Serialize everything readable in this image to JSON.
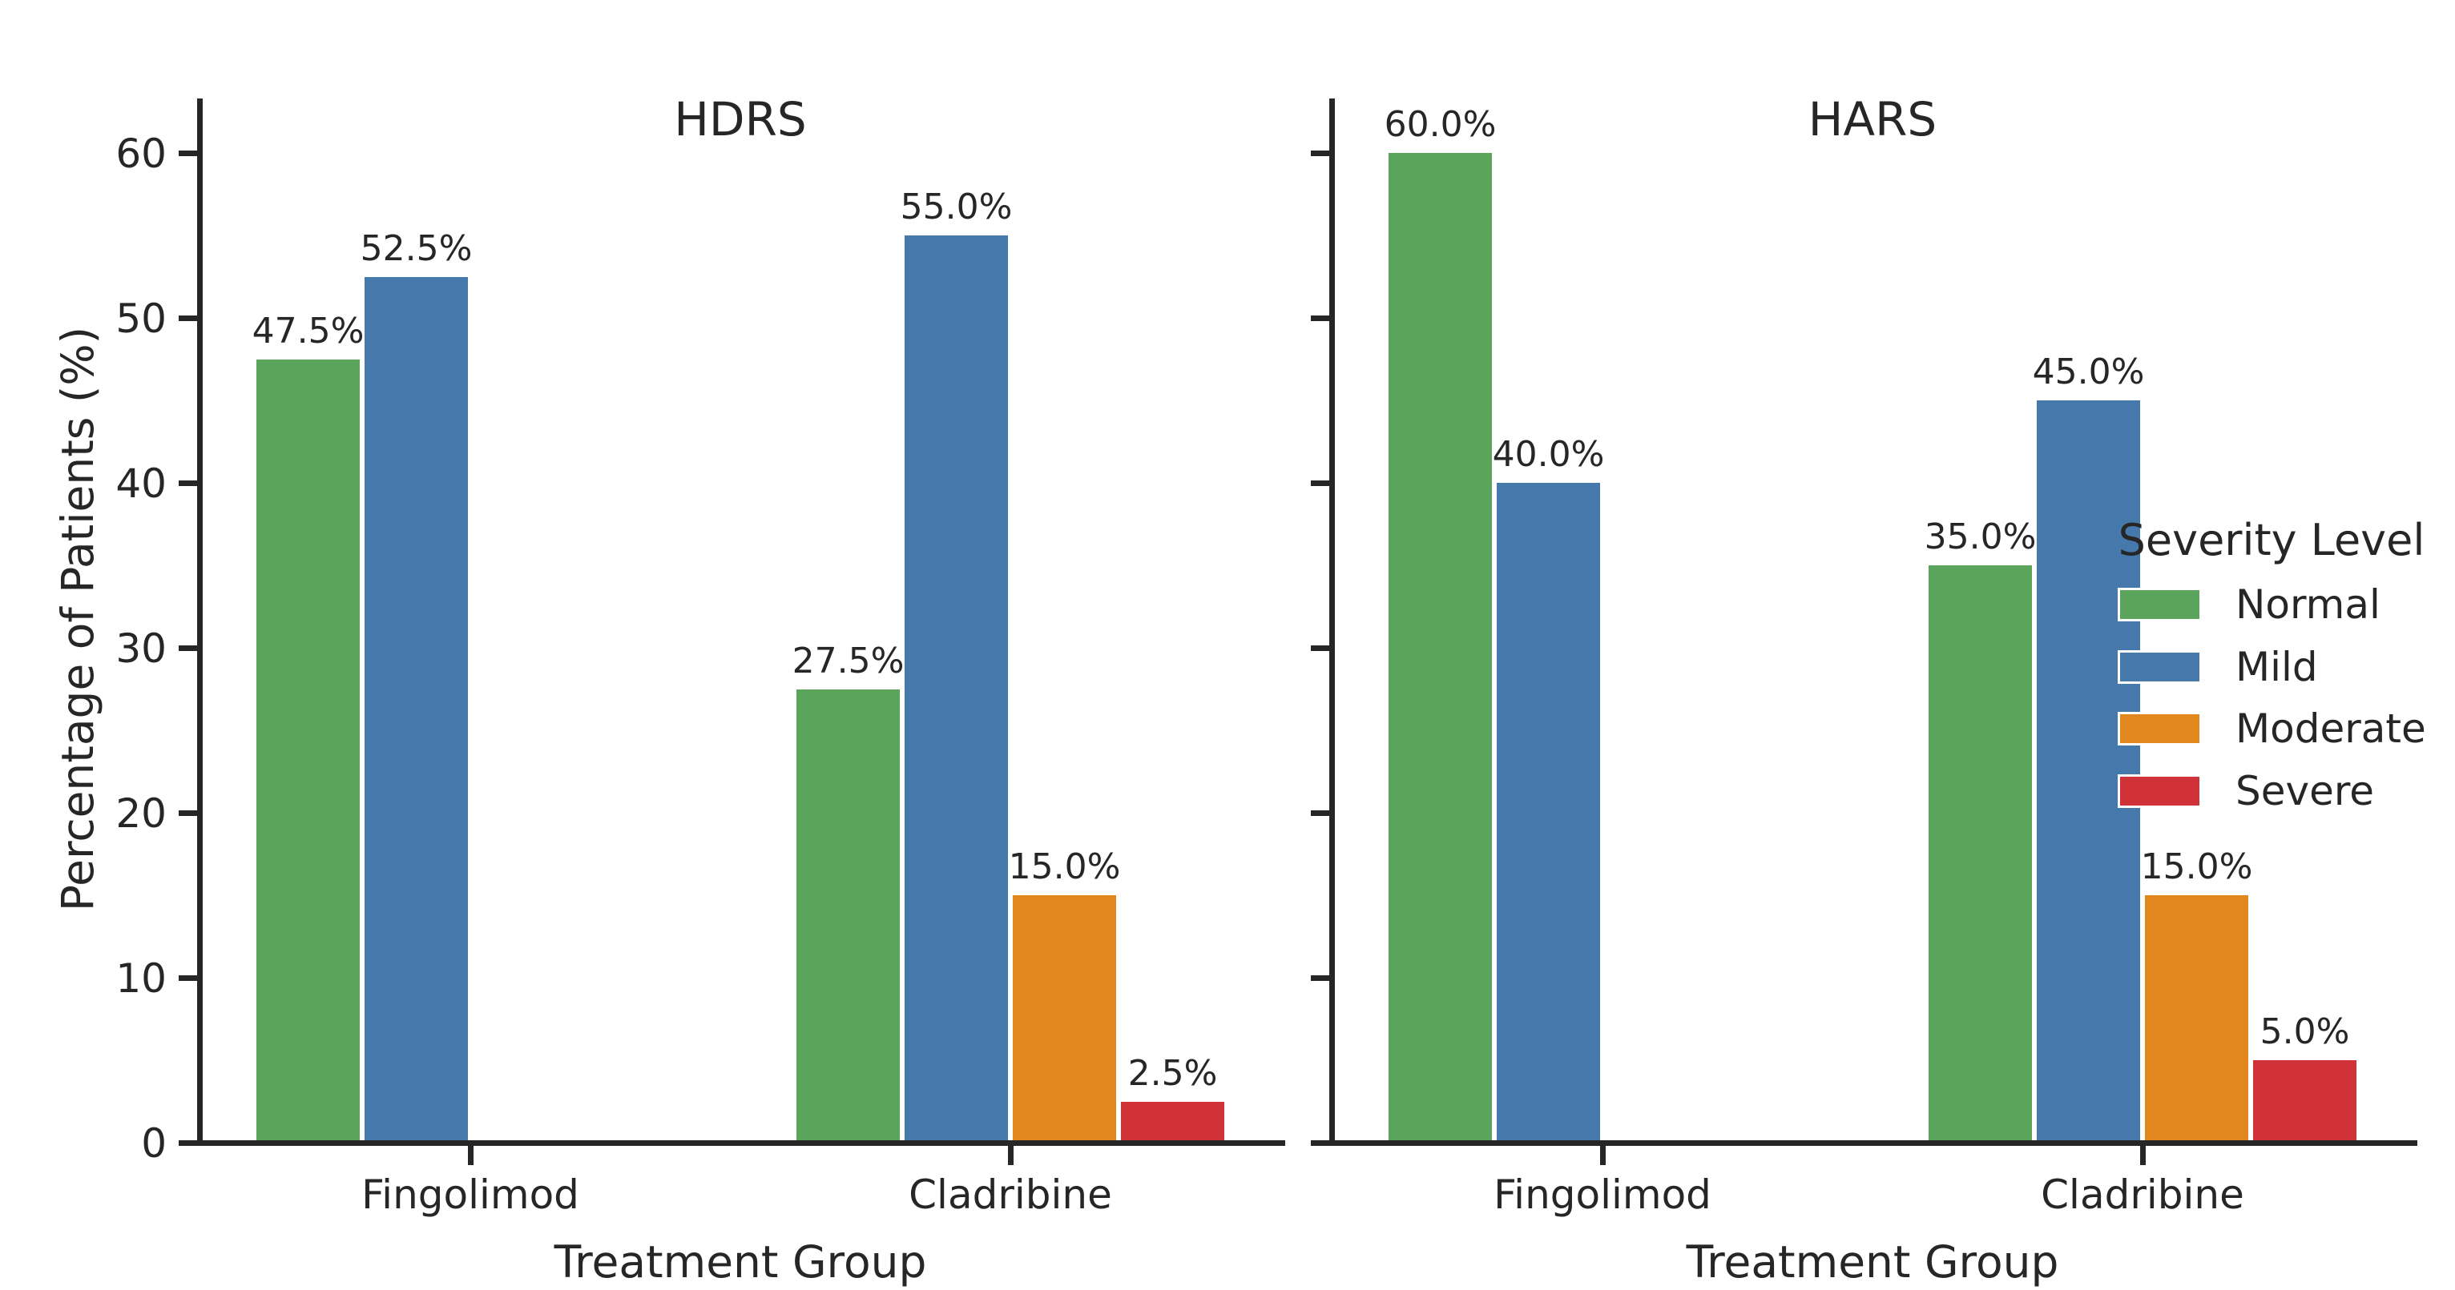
{
  "figure": {
    "background": "#ffffff",
    "axis_color": "#262626",
    "ylabel": "Percentage of Patients (%)",
    "xlabel": "Treatment Group",
    "legend": {
      "title": "Severity Level",
      "entries": [
        {
          "label": "Normal",
          "color": "#5aa45c"
        },
        {
          "label": "Mild",
          "color": "#4679ab"
        },
        {
          "label": "Moderate",
          "color": "#e1871e"
        },
        {
          "label": "Severe",
          "color": "#d03238"
        }
      ],
      "location": "inside-right-chart"
    }
  },
  "chart_data": [
    {
      "type": "bar",
      "title": "HDRS",
      "xlabel": "Treatment Group",
      "ylabel": "Percentage of Patients (%)",
      "categories": [
        "Fingolimod",
        "Cladribine"
      ],
      "series": [
        {
          "name": "Normal",
          "color": "#5aa45c",
          "values": [
            47.5,
            27.5
          ],
          "labels": [
            "47.5%",
            "27.5%"
          ]
        },
        {
          "name": "Mild",
          "color": "#4679ab",
          "values": [
            52.5,
            55.0
          ],
          "labels": [
            "52.5%",
            "55.0%"
          ]
        },
        {
          "name": "Moderate",
          "color": "#e1871e",
          "values": [
            0,
            15.0
          ],
          "labels": [
            "",
            "15.0%"
          ]
        },
        {
          "name": "Severe",
          "color": "#d03238",
          "values": [
            0,
            2.5
          ],
          "labels": [
            "",
            "2.5%"
          ]
        }
      ],
      "ylim": [
        0,
        63
      ],
      "yticks": [
        0,
        10,
        20,
        30,
        40,
        50,
        60
      ],
      "grid": false,
      "show_ytick_labels": true
    },
    {
      "type": "bar",
      "title": "HARS",
      "xlabel": "Treatment Group",
      "ylabel": "Percentage of Patients (%)",
      "categories": [
        "Fingolimod",
        "Cladribine"
      ],
      "series": [
        {
          "name": "Normal",
          "color": "#5aa45c",
          "values": [
            60.0,
            35.0
          ],
          "labels": [
            "60.0%",
            "35.0%"
          ]
        },
        {
          "name": "Mild",
          "color": "#4679ab",
          "values": [
            40.0,
            45.0
          ],
          "labels": [
            "40.0%",
            "45.0%"
          ]
        },
        {
          "name": "Moderate",
          "color": "#e1871e",
          "values": [
            0,
            15.0
          ],
          "labels": [
            "",
            "15.0%"
          ]
        },
        {
          "name": "Severe",
          "color": "#d03238",
          "values": [
            0,
            5.0
          ],
          "labels": [
            "",
            "5.0%"
          ]
        }
      ],
      "ylim": [
        0,
        63
      ],
      "yticks": [
        0,
        10,
        20,
        30,
        40,
        50,
        60
      ],
      "grid": false,
      "show_ytick_labels": false
    }
  ]
}
